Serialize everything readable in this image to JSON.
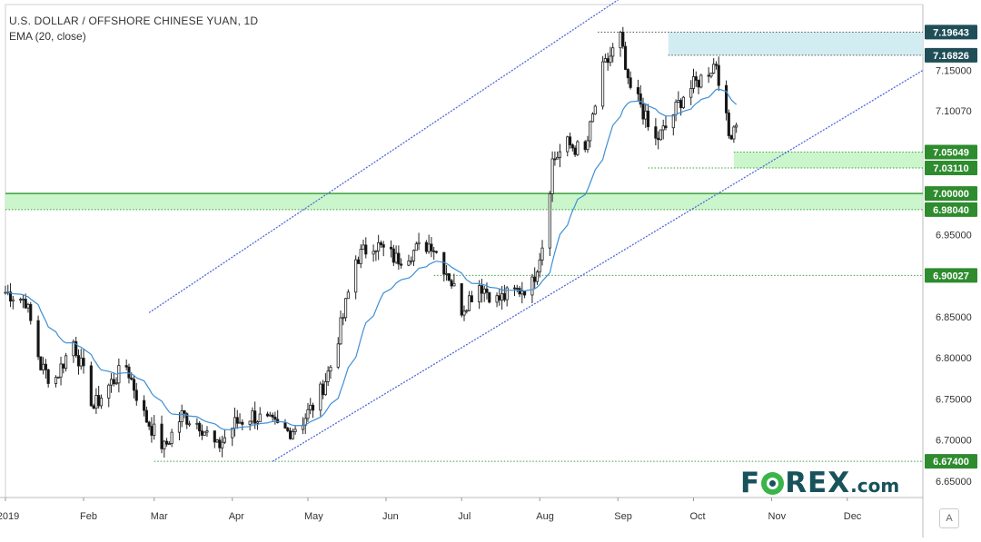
{
  "chart_data": {
    "type": "candlestick",
    "title": "U.S. DOLLAR / OFFSHORE CHINESE YUAN, 1D",
    "indicator": "EMA (20, close)",
    "ylim": [
      6.63,
      7.23
    ],
    "y_ticks": [
      "7.15000",
      "7.10070",
      "6.95000",
      "6.85000",
      "6.80000",
      "6.75000",
      "6.70000",
      "6.65000"
    ],
    "y_tick_values": [
      7.15,
      7.1007,
      6.95,
      6.85,
      6.8,
      6.75,
      6.7,
      6.65
    ],
    "x_labels": [
      "2019",
      "Feb",
      "Mar",
      "Apr",
      "May",
      "Jun",
      "Jul",
      "Aug",
      "Sep",
      "Oct",
      "Nov",
      "Dec"
    ],
    "x_label_dates": [
      "2019-01-01",
      "2019-02-01",
      "2019-03-01",
      "2019-04-01",
      "2019-05-01",
      "2019-06-01",
      "2019-07-01",
      "2019-08-01",
      "2019-09-01",
      "2019-10-01",
      "2019-11-01",
      "2019-12-01"
    ],
    "price_levels": [
      {
        "label": "7.19643",
        "value": 7.19643,
        "style": "dark"
      },
      {
        "label": "7.16826",
        "value": 7.16826,
        "style": "dark"
      },
      {
        "label": "7.05049",
        "value": 7.05049,
        "style": "green"
      },
      {
        "label": "7.03110",
        "value": 7.0311,
        "style": "green"
      },
      {
        "label": "7.00000",
        "value": 7.0,
        "style": "green"
      },
      {
        "label": "6.98040",
        "value": 6.9804,
        "style": "green"
      },
      {
        "label": "6.90027",
        "value": 6.90027,
        "style": "green"
      },
      {
        "label": "6.67400",
        "value": 6.674,
        "style": "green"
      }
    ],
    "zones": [
      {
        "from_date": "2019-09-21",
        "to_date": "2019-12-31",
        "low": 7.16826,
        "high": 7.19643,
        "color": "#cdebf0"
      },
      {
        "from_date": "2019-10-17",
        "to_date": "2019-12-31",
        "low": 7.0311,
        "high": 7.05049,
        "color": "#c5f5c5"
      },
      {
        "from_date": "2019-01-01",
        "to_date": "2019-12-31",
        "low": 6.9804,
        "high": 7.0,
        "color": "#c5f5c5"
      }
    ],
    "channel_lines": [
      {
        "from": [
          "2019-02-27",
          6.855
        ],
        "to": [
          "2019-10-22",
          7.34
        ]
      },
      {
        "from": [
          "2019-04-17",
          6.674
        ],
        "to": [
          "2019-12-31",
          7.15
        ]
      }
    ],
    "ohlc_anchors": [
      [
        "2019-01-01",
        6.88
      ],
      [
        "2019-01-09",
        6.87
      ],
      [
        "2019-01-15",
        6.79
      ],
      [
        "2019-01-20",
        6.77
      ],
      [
        "2019-01-28",
        6.82
      ],
      [
        "2019-02-05",
        6.74
      ],
      [
        "2019-02-12",
        6.77
      ],
      [
        "2019-02-18",
        6.79
      ],
      [
        "2019-02-25",
        6.73
      ],
      [
        "2019-03-05",
        6.69
      ],
      [
        "2019-03-12",
        6.73
      ],
      [
        "2019-03-19",
        6.72
      ],
      [
        "2019-03-26",
        6.69
      ],
      [
        "2019-04-02",
        6.72
      ],
      [
        "2019-04-09",
        6.73
      ],
      [
        "2019-04-16",
        6.72
      ],
      [
        "2019-04-23",
        6.71
      ],
      [
        "2019-04-28",
        6.72
      ],
      [
        "2019-05-05",
        6.75
      ],
      [
        "2019-05-10",
        6.79
      ],
      [
        "2019-05-15",
        6.85
      ],
      [
        "2019-05-20",
        6.92
      ],
      [
        "2019-05-27",
        6.94
      ],
      [
        "2019-06-05",
        6.92
      ],
      [
        "2019-06-12",
        6.93
      ],
      [
        "2019-06-19",
        6.94
      ],
      [
        "2019-06-26",
        6.9
      ],
      [
        "2019-07-01",
        6.86
      ],
      [
        "2019-07-08",
        6.89
      ],
      [
        "2019-07-15",
        6.87
      ],
      [
        "2019-07-22",
        6.88
      ],
      [
        "2019-07-29",
        6.89
      ],
      [
        "2019-08-03",
        6.95
      ],
      [
        "2019-08-06",
        7.04
      ],
      [
        "2019-08-12",
        7.06
      ],
      [
        "2019-08-19",
        7.05
      ],
      [
        "2019-08-26",
        7.15
      ],
      [
        "2019-09-02",
        7.19
      ],
      [
        "2019-09-05",
        7.13
      ],
      [
        "2019-09-10",
        7.11
      ],
      [
        "2019-09-15",
        7.06
      ],
      [
        "2019-09-20",
        7.08
      ],
      [
        "2019-09-27",
        7.12
      ],
      [
        "2019-10-04",
        7.14
      ],
      [
        "2019-10-10",
        7.16
      ],
      [
        "2019-10-15",
        7.07
      ],
      [
        "2019-10-18",
        7.09
      ]
    ]
  },
  "branding": {
    "logo": "FOREX.com",
    "auto_scale_button": "A"
  },
  "colors": {
    "up": "#2a2a2a",
    "down": "#111111",
    "ema": "#3f8fd5",
    "channel": "#5169d9",
    "dark_label": "#1f4e57",
    "green_label": "#2e8b2e"
  }
}
